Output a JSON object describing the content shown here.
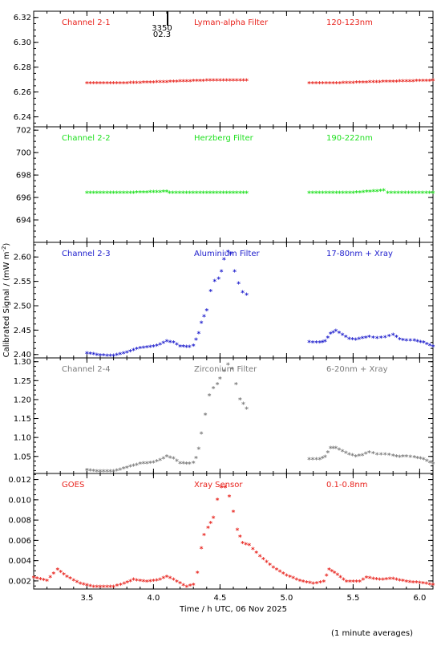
{
  "annotation": {
    "marker_orbit": "3350",
    "marker_phase": "02.3"
  },
  "footer": {
    "note": "(1 minute averages)"
  },
  "chart_data": {
    "type": "scatter",
    "xlabel": "Time / h UTC, 06 Nov 2025",
    "ylabel": "Calibrated Signal / (mW m",
    "ylabel_superscript": "-2",
    "ylabel_close": ")",
    "xlim": [
      3.1,
      6.1
    ],
    "x_ticks": [
      3.5,
      4.0,
      4.5,
      5.0,
      5.5,
      6.0
    ],
    "x_tick_labels": [
      "3.5",
      "4.0",
      "4.5",
      "5.0",
      "5.5",
      "6.0"
    ],
    "grid": false,
    "marker": "asterisk",
    "panels": [
      {
        "channel": "Channel 2-1",
        "filter": "Lyman-alpha Filter",
        "band": "120-123nm",
        "color": "#e8231d",
        "ylim": [
          6.232,
          6.325
        ],
        "y_ticks": [
          6.24,
          6.26,
          6.28,
          6.3,
          6.32
        ],
        "y_tick_labels": [
          "6.24",
          "6.26",
          "6.28",
          "6.30",
          "6.32"
        ],
        "segments": [
          [
            [
              3.5,
              6.267
            ],
            [
              3.8,
              6.267
            ],
            [
              4.1,
              6.268
            ],
            [
              4.4,
              6.269
            ],
            [
              4.7,
              6.269
            ]
          ],
          [
            [
              5.17,
              6.267
            ],
            [
              5.4,
              6.267
            ],
            [
              5.7,
              6.268
            ],
            [
              6.1,
              6.269
            ]
          ]
        ]
      },
      {
        "channel": "Channel 2-2",
        "filter": "Herzberg Filter",
        "band": "190-222nm",
        "color": "#1fe01f",
        "ylim": [
          692.0,
          702.3
        ],
        "y_ticks": [
          694,
          696,
          698,
          700,
          702
        ],
        "y_tick_labels": [
          "694",
          "696",
          "698",
          "700",
          "702"
        ],
        "segments": [
          [
            [
              3.5,
              696.4
            ],
            [
              3.8,
              696.4
            ],
            [
              4.1,
              696.5
            ],
            [
              4.12,
              696.4
            ],
            [
              4.4,
              696.4
            ],
            [
              4.7,
              696.4
            ]
          ],
          [
            [
              5.17,
              696.4
            ],
            [
              5.5,
              696.4
            ],
            [
              5.73,
              696.6
            ],
            [
              5.76,
              696.4
            ],
            [
              6.1,
              696.4
            ]
          ]
        ]
      },
      {
        "channel": "Channel 2-3",
        "filter": "Aluminium Filter",
        "band": "17-80nm + Xray",
        "color": "#1c1ccc",
        "ylim": [
          2.393,
          2.63
        ],
        "y_ticks": [
          2.4,
          2.45,
          2.5,
          2.55,
          2.6
        ],
        "y_tick_labels": [
          "2.40",
          "2.45",
          "2.50",
          "2.55",
          "2.60"
        ],
        "segments": [
          [
            [
              3.5,
              2.402
            ],
            [
              3.6,
              2.398
            ],
            [
              3.7,
              2.397
            ],
            [
              3.8,
              2.404
            ],
            [
              3.9,
              2.413
            ],
            [
              4.0,
              2.416
            ],
            [
              4.05,
              2.42
            ],
            [
              4.1,
              2.427
            ],
            [
              4.15,
              2.424
            ],
            [
              4.2,
              2.416
            ],
            [
              4.27,
              2.415
            ],
            [
              4.3,
              2.418
            ],
            [
              4.32,
              2.43
            ],
            [
              4.34,
              2.443
            ],
            [
              4.36,
              2.465
            ],
            [
              4.4,
              2.49
            ],
            [
              4.43,
              2.53
            ],
            [
              4.46,
              2.55
            ],
            [
              4.49,
              2.555
            ],
            [
              4.51,
              2.57
            ],
            [
              4.53,
              2.595
            ],
            [
              4.56,
              2.61
            ],
            [
              4.58,
              2.606
            ],
            [
              4.61,
              2.57
            ],
            [
              4.64,
              2.545
            ],
            [
              4.67,
              2.527
            ],
            [
              4.7,
              2.522
            ]
          ],
          [
            [
              5.17,
              2.425
            ],
            [
              5.25,
              2.424
            ],
            [
              5.29,
              2.427
            ],
            [
              5.33,
              2.442
            ],
            [
              5.37,
              2.448
            ],
            [
              5.42,
              2.44
            ],
            [
              5.47,
              2.432
            ],
            [
              5.52,
              2.43
            ],
            [
              5.57,
              2.433
            ],
            [
              5.62,
              2.436
            ],
            [
              5.68,
              2.433
            ],
            [
              5.74,
              2.435
            ],
            [
              5.8,
              2.44
            ],
            [
              5.85,
              2.431
            ],
            [
              5.9,
              2.428
            ],
            [
              5.96,
              2.428
            ],
            [
              6.03,
              2.424
            ],
            [
              6.1,
              2.416
            ]
          ]
        ]
      },
      {
        "channel": "Channel 2-4",
        "filter": "Zirconium Filter",
        "band": "6-20nm + Xray",
        "color": "#7b7b7b",
        "ylim": [
          1.005,
          1.31
        ],
        "y_ticks": [
          1.05,
          1.1,
          1.15,
          1.2,
          1.25,
          1.3
        ],
        "y_tick_labels": [
          "1.05",
          "1.10",
          "1.15",
          "1.20",
          "1.25",
          "1.30"
        ],
        "segments": [
          [
            [
              3.5,
              1.013
            ],
            [
              3.6,
              1.01
            ],
            [
              3.7,
              1.01
            ],
            [
              3.8,
              1.02
            ],
            [
              3.9,
              1.03
            ],
            [
              4.0,
              1.034
            ],
            [
              4.05,
              1.04
            ],
            [
              4.1,
              1.049
            ],
            [
              4.15,
              1.044
            ],
            [
              4.2,
              1.032
            ],
            [
              4.27,
              1.03
            ],
            [
              4.3,
              1.033
            ],
            [
              4.32,
              1.045
            ],
            [
              4.34,
              1.07
            ],
            [
              4.36,
              1.11
            ],
            [
              4.39,
              1.16
            ],
            [
              4.42,
              1.21
            ],
            [
              4.45,
              1.23
            ],
            [
              4.48,
              1.24
            ],
            [
              4.5,
              1.255
            ],
            [
              4.53,
              1.275
            ],
            [
              4.56,
              1.292
            ],
            [
              4.59,
              1.28
            ],
            [
              4.62,
              1.24
            ],
            [
              4.65,
              1.2
            ],
            [
              4.7,
              1.176
            ]
          ],
          [
            [
              5.17,
              1.042
            ],
            [
              5.25,
              1.042
            ],
            [
              5.29,
              1.048
            ],
            [
              5.33,
              1.072
            ],
            [
              5.37,
              1.072
            ],
            [
              5.42,
              1.063
            ],
            [
              5.47,
              1.055
            ],
            [
              5.52,
              1.05
            ],
            [
              5.57,
              1.053
            ],
            [
              5.62,
              1.06
            ],
            [
              5.68,
              1.055
            ],
            [
              5.74,
              1.055
            ],
            [
              5.8,
              1.052
            ],
            [
              5.85,
              1.048
            ],
            [
              5.9,
              1.05
            ],
            [
              5.96,
              1.047
            ],
            [
              6.03,
              1.042
            ],
            [
              6.1,
              1.03
            ]
          ]
        ]
      },
      {
        "channel": "GOES",
        "filter": "Xray Sensor",
        "band": "0.1-0.8nm",
        "color": "#e8231d",
        "ylim": [
          0.0012,
          0.0126
        ],
        "y_ticks": [
          0.002,
          0.004,
          0.006,
          0.008,
          0.01,
          0.012
        ],
        "y_tick_labels": [
          "0.002",
          "0.004",
          "0.006",
          "0.008",
          "0.010",
          "0.012"
        ],
        "segments": [
          [
            [
              3.1,
              0.0023
            ],
            [
              3.2,
              0.002
            ],
            [
              3.25,
              0.0027
            ],
            [
              3.28,
              0.0031
            ],
            [
              3.35,
              0.0024
            ],
            [
              3.45,
              0.0017
            ],
            [
              3.55,
              0.0014
            ],
            [
              3.7,
              0.0014
            ],
            [
              3.78,
              0.0017
            ],
            [
              3.85,
              0.0021
            ],
            [
              3.95,
              0.0019
            ],
            [
              4.05,
              0.0021
            ],
            [
              4.1,
              0.0024
            ],
            [
              4.15,
              0.0021
            ],
            [
              4.25,
              0.0014
            ],
            [
              4.3,
              0.0016
            ],
            [
              4.33,
              0.0028
            ],
            [
              4.36,
              0.0052
            ],
            [
              4.38,
              0.0065
            ],
            [
              4.41,
              0.0072
            ],
            [
              4.45,
              0.0082
            ],
            [
              4.48,
              0.01
            ],
            [
              4.51,
              0.0112
            ],
            [
              4.54,
              0.0112
            ],
            [
              4.57,
              0.0103
            ],
            [
              4.6,
              0.0088
            ],
            [
              4.63,
              0.007
            ],
            [
              4.67,
              0.0057
            ],
            [
              4.72,
              0.0055
            ],
            [
              4.8,
              0.0044
            ],
            [
              4.9,
              0.0033
            ],
            [
              5.0,
              0.0025
            ],
            [
              5.1,
              0.002
            ],
            [
              5.2,
              0.0017
            ],
            [
              5.28,
              0.0019
            ],
            [
              5.32,
              0.0031
            ],
            [
              5.36,
              0.0028
            ],
            [
              5.45,
              0.0019
            ],
            [
              5.55,
              0.0019
            ],
            [
              5.6,
              0.0023
            ],
            [
              5.7,
              0.0021
            ],
            [
              5.8,
              0.0022
            ],
            [
              5.9,
              0.0019
            ],
            [
              6.0,
              0.0018
            ],
            [
              6.1,
              0.0016
            ]
          ]
        ]
      }
    ]
  }
}
